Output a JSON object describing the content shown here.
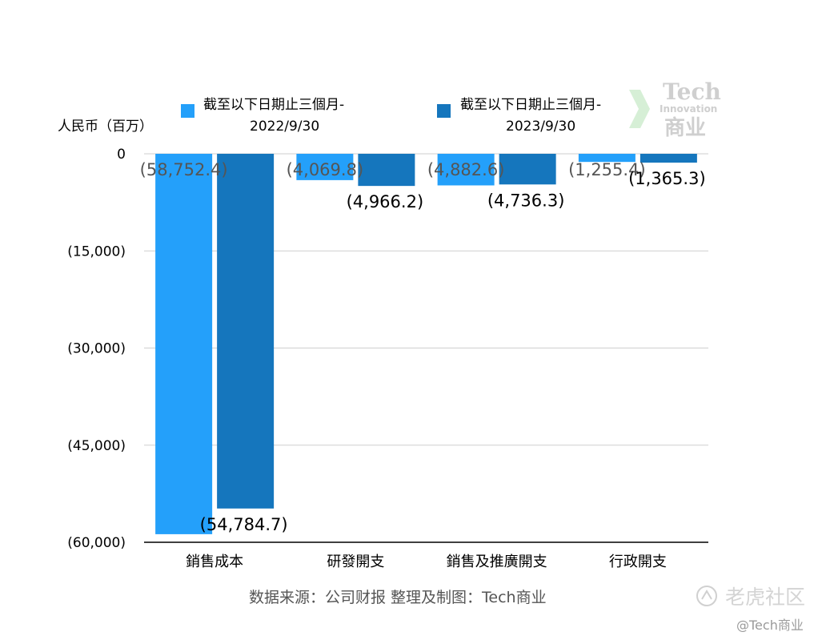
{
  "chart_data": {
    "type": "bar",
    "title": "",
    "xlabel": "",
    "ylabel": "人民币（百万）",
    "categories": [
      "銷售成本",
      "研發開支",
      "銷售及推廣開支",
      "行政開支"
    ],
    "series": [
      {
        "name": "截至以下日期止三個月-2022/9/30",
        "legend_lines": [
          "截至以下日期止三個月-",
          "2022/9/30"
        ],
        "color": "#24A0FA",
        "label_color": "#555555",
        "values": [
          -58752.4,
          -4069.8,
          -4882.6,
          -1255.4
        ],
        "labels": [
          "(58,752.4)",
          "(4,069.8)",
          "(4,882.6)",
          "(1,255.4)"
        ]
      },
      {
        "name": "截至以下日期止三個月-2023/9/30",
        "legend_lines": [
          "截至以下日期止三個月-",
          "2023/9/30"
        ],
        "color": "#1576BD",
        "label_color": "#000000",
        "values": [
          -54784.7,
          -4966.2,
          -4736.3,
          -1365.3
        ],
        "labels": [
          "(54,784.7)",
          "(4,966.2)",
          "(4,736.3)",
          "(1,365.3)"
        ]
      }
    ],
    "ylim": [
      -60000,
      0
    ],
    "yticks": [
      0,
      -15000,
      -30000,
      -45000,
      -60000
    ],
    "ytick_labels": [
      "0",
      "(15,000)",
      "(30,000)",
      "(45,000)",
      "(60,000)"
    ],
    "grid": true,
    "legend_position": "top"
  },
  "source_note": "数据来源：公司财报 整理及制图：Tech商业",
  "watermarks": {
    "brand_top": "Tech",
    "brand_middle": "Innovation",
    "brand_bottom": "商业",
    "community": "老虎社区",
    "handle": "@Tech商业"
  }
}
